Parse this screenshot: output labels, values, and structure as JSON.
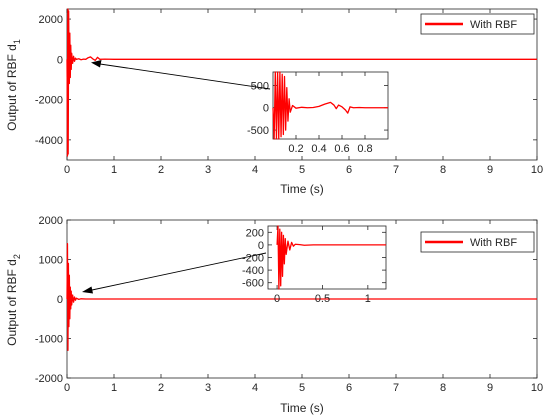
{
  "chart_data": [
    {
      "type": "line",
      "xlabel": "Time (s)",
      "ylabel": "Output of RBF d",
      "ylabel_subscript": "1",
      "xlim": [
        0,
        10
      ],
      "ylim": [
        -5000,
        2500
      ],
      "xticks": [
        0,
        1,
        2,
        3,
        4,
        5,
        6,
        7,
        8,
        9,
        10
      ],
      "yticks": [
        -4000,
        -2000,
        0,
        2000
      ],
      "legend": {
        "label": "With RBF",
        "position": "top-right"
      },
      "series": [
        {
          "name": "With RBF",
          "color": "#ff0000",
          "x": [
            0,
            0.005,
            0.01,
            0.015,
            0.02,
            0.025,
            0.03,
            0.035,
            0.04,
            0.05,
            0.06,
            0.07,
            0.08,
            0.09,
            0.1,
            0.12,
            0.14,
            0.16,
            0.18,
            0.2,
            0.25,
            0.3,
            0.35,
            0.4,
            0.45,
            0.5,
            0.55,
            0.6,
            0.65,
            0.7,
            0.8,
            1,
            2,
            3,
            4,
            5,
            6,
            7,
            8,
            9,
            10
          ],
          "y": [
            0,
            -1500,
            -4800,
            1500,
            2500,
            -4700,
            -1600,
            2400,
            900,
            -1200,
            1300,
            -900,
            700,
            -500,
            300,
            -200,
            150,
            -100,
            60,
            0,
            30,
            -20,
            10,
            0,
            80,
            120,
            20,
            -50,
            100,
            0,
            10,
            0,
            0,
            0,
            0,
            0,
            0,
            0,
            0,
            0,
            0
          ]
        }
      ],
      "inset": {
        "xlim": [
          0,
          1
        ],
        "ylim": [
          -700,
          800
        ],
        "xticks": [
          0.2,
          0.4,
          0.6,
          0.8
        ],
        "yticks": [
          -500,
          0,
          500
        ],
        "series": {
          "x": [
            0,
            0.01,
            0.02,
            0.03,
            0.04,
            0.05,
            0.06,
            0.07,
            0.08,
            0.09,
            0.1,
            0.11,
            0.12,
            0.13,
            0.14,
            0.15,
            0.17,
            0.2,
            0.25,
            0.3,
            0.35,
            0.4,
            0.45,
            0.5,
            0.53,
            0.55,
            0.57,
            0.6,
            0.63,
            0.65,
            0.67,
            0.7,
            0.75,
            0.8,
            0.9,
            1.0
          ],
          "y": [
            0,
            -700,
            800,
            -700,
            800,
            -700,
            800,
            -650,
            750,
            -600,
            700,
            -500,
            450,
            -300,
            200,
            -100,
            50,
            -10,
            10,
            0,
            5,
            30,
            80,
            120,
            60,
            -20,
            60,
            20,
            -50,
            -120,
            20,
            0,
            5,
            0,
            0,
            0
          ]
        }
      }
    },
    {
      "type": "line",
      "xlabel": "Time (s)",
      "ylabel": "Output of RBF d",
      "ylabel_subscript": "2",
      "xlim": [
        0,
        10
      ],
      "ylim": [
        -2000,
        2000
      ],
      "xticks": [
        0,
        1,
        2,
        3,
        4,
        5,
        6,
        7,
        8,
        9,
        10
      ],
      "yticks": [
        -2000,
        -1000,
        0,
        1000,
        2000
      ],
      "legend": {
        "label": "With RBF",
        "position": "top-right"
      },
      "series": [
        {
          "name": "With RBF",
          "color": "#ff0000",
          "x": [
            0,
            0.01,
            0.02,
            0.03,
            0.04,
            0.05,
            0.06,
            0.07,
            0.08,
            0.09,
            0.1,
            0.12,
            0.14,
            0.16,
            0.18,
            0.2,
            0.25,
            0.3,
            0.4,
            0.5,
            1,
            2,
            3,
            4,
            5,
            6,
            7,
            8,
            9,
            10
          ],
          "y": [
            0,
            1400,
            -1300,
            900,
            -700,
            600,
            -500,
            300,
            -250,
            200,
            -150,
            100,
            -80,
            50,
            -30,
            20,
            -10,
            5,
            0,
            0,
            0,
            0,
            0,
            0,
            0,
            0,
            0,
            0,
            0,
            0
          ]
        }
      ],
      "inset": {
        "xlim": [
          -0.1,
          1.2
        ],
        "ylim": [
          -700,
          300
        ],
        "xticks": [
          0,
          0.5,
          1
        ],
        "yticks": [
          -600,
          -400,
          -200,
          0,
          200
        ],
        "series": {
          "x": [
            0,
            0.01,
            0.02,
            0.03,
            0.04,
            0.05,
            0.06,
            0.07,
            0.08,
            0.09,
            0.1,
            0.12,
            0.14,
            0.16,
            0.18,
            0.2,
            0.25,
            0.3,
            0.4,
            0.5,
            0.6,
            0.8,
            1.0,
            1.2
          ],
          "y": [
            0,
            300,
            -700,
            250,
            -650,
            200,
            -500,
            150,
            -300,
            100,
            -150,
            60,
            -80,
            40,
            -20,
            10,
            5,
            -5,
            0,
            0,
            0,
            0,
            0,
            0
          ]
        }
      }
    }
  ],
  "colors": {
    "series": "#ff0000",
    "axis": "#262626",
    "arrow": "#000000"
  }
}
